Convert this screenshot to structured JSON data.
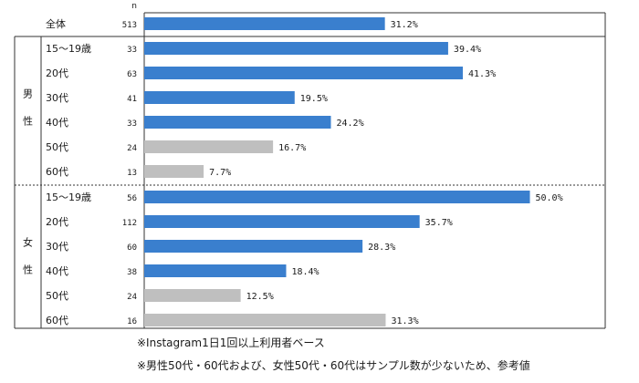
{
  "chart_data": {
    "type": "bar",
    "orientation": "horizontal",
    "n_header": "n",
    "xlim": [
      0,
      55
    ],
    "colors": {
      "highlight": "#3a7fce",
      "reference": "#bfbfbf"
    },
    "overall": {
      "label": "全体",
      "n": "513",
      "value": 31.2,
      "value_label": "31.2%"
    },
    "groups": [
      {
        "name_chars": [
          "男",
          "性"
        ],
        "rows": [
          {
            "label": "15～19歳",
            "n": "33",
            "value": 39.4,
            "value_label": "39.4%",
            "reference": false
          },
          {
            "label": "20代",
            "n": "63",
            "value": 41.3,
            "value_label": "41.3%",
            "reference": false
          },
          {
            "label": "30代",
            "n": "41",
            "value": 19.5,
            "value_label": "19.5%",
            "reference": false
          },
          {
            "label": "40代",
            "n": "33",
            "value": 24.2,
            "value_label": "24.2%",
            "reference": false
          },
          {
            "label": "50代",
            "n": "24",
            "value": 16.7,
            "value_label": "16.7%",
            "reference": true
          },
          {
            "label": "60代",
            "n": "13",
            "value": 7.7,
            "value_label": "7.7%",
            "reference": true
          }
        ]
      },
      {
        "name_chars": [
          "女",
          "性"
        ],
        "rows": [
          {
            "label": "15～19歳",
            "n": "56",
            "value": 50.0,
            "value_label": "50.0%",
            "reference": false
          },
          {
            "label": "20代",
            "n": "112",
            "value": 35.7,
            "value_label": "35.7%",
            "reference": false
          },
          {
            "label": "30代",
            "n": "60",
            "value": 28.3,
            "value_label": "28.3%",
            "reference": false
          },
          {
            "label": "40代",
            "n": "38",
            "value": 18.4,
            "value_label": "18.4%",
            "reference": false
          },
          {
            "label": "50代",
            "n": "24",
            "value": 12.5,
            "value_label": "12.5%",
            "reference": true
          },
          {
            "label": "60代",
            "n": "16",
            "value": 31.3,
            "value_label": "31.3%",
            "reference": true
          }
        ]
      }
    ]
  },
  "notes": {
    "base": "※Instagram1日1回以上利用者ベース",
    "caution": "※男性50代・60代および、女性50代・60代はサンプル数が少ないため、参考値"
  }
}
